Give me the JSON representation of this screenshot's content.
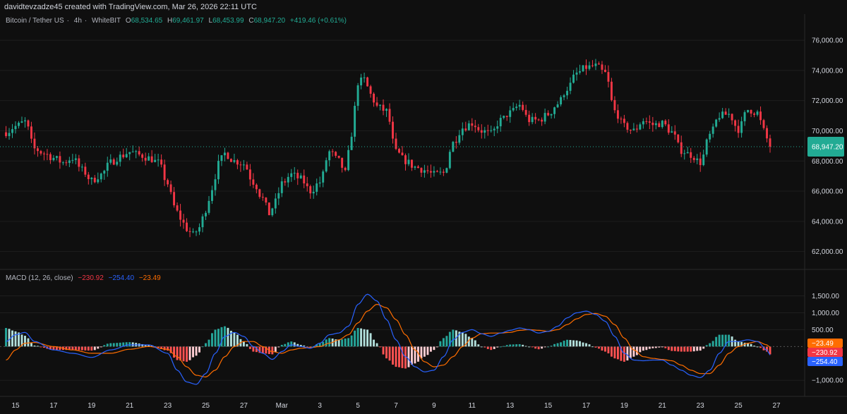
{
  "header": {
    "credit": "davidtevzadze45 created with TradingView.com, Mar 26, 2026 22:11 UTC"
  },
  "legend": {
    "symbol": "Bitcoin / Tether US",
    "interval": "4h",
    "exchange": "WhiteBIT",
    "open_label": "O",
    "open": "68,534.65",
    "high_label": "H",
    "high": "69,461.97",
    "low_label": "L",
    "low": "68,453.99",
    "close_label": "C",
    "close": "68,947.20",
    "change": "+419.46 (+0.61%)"
  },
  "macd_legend": {
    "name": "MACD (12, 26, close)",
    "hist": "−230.92",
    "macd": "−254.40",
    "signal": "−23.49"
  },
  "colors": {
    "background": "#0f0f0f",
    "up": "#22ab94",
    "down": "#f23645",
    "macd_line": "#2962ff",
    "signal_line": "#ff6d00",
    "hist_up_strong": "#26a69a",
    "hist_up_weak": "#b2dfdb",
    "hist_down_strong": "#ff5252",
    "hist_down_weak": "#ffcdd2",
    "grid": "#1e1e1e"
  },
  "chart_data": [
    {
      "type": "candlestick",
      "symbol": "Bitcoin / Tether US",
      "interval": "4h",
      "ylim": [
        61000,
        76800
      ],
      "yticks": [
        62000,
        64000,
        66000,
        68000,
        70000,
        72000,
        74000,
        76000
      ],
      "ytick_labels": [
        "62,000.00",
        "64,000.00",
        "66,000.00",
        "68,000.00",
        "70,000.00",
        "72,000.00",
        "74,000.00",
        "76,000.00"
      ],
      "xticks": [
        "15",
        "17",
        "19",
        "21",
        "23",
        "25",
        "27",
        "Mar",
        "3",
        "5",
        "7",
        "9",
        "11",
        "13",
        "15",
        "17",
        "19",
        "21",
        "23",
        "25",
        "27"
      ],
      "last_price": 68947.2,
      "last_price_label": "68,947.20",
      "close_path": [
        [
          "Feb 14 12:00",
          69900
        ],
        [
          "Feb 15 00:00",
          70300
        ],
        [
          "Feb 15 12:00",
          70600
        ],
        [
          "Feb 16 00:00",
          68800
        ],
        [
          "Feb 16 12:00",
          68500
        ],
        [
          "Feb 17 00:00",
          68200
        ],
        [
          "Feb 17 12:00",
          67900
        ],
        [
          "Feb 18 00:00",
          68200
        ],
        [
          "Feb 18 12:00",
          67400
        ],
        [
          "Feb 19 00:00",
          66700
        ],
        [
          "Feb 19 12:00",
          67100
        ],
        [
          "Feb 20 00:00",
          67900
        ],
        [
          "Feb 20 12:00",
          68300
        ],
        [
          "Feb 21 00:00",
          68600
        ],
        [
          "Feb 21 12:00",
          68400
        ],
        [
          "Feb 22 00:00",
          68200
        ],
        [
          "Feb 22 12:00",
          67900
        ],
        [
          "Feb 23 00:00",
          66500
        ],
        [
          "Feb 23 08:00",
          65000
        ],
        [
          "Feb 23 16:00",
          64200
        ],
        [
          "Feb 24 00:00",
          63500
        ],
        [
          "Feb 24 08:00",
          63100
        ],
        [
          "Feb 24 16:00",
          63600
        ],
        [
          "Feb 25 00:00",
          64800
        ],
        [
          "Feb 25 08:00",
          66200
        ],
        [
          "Feb 25 16:00",
          67800
        ],
        [
          "Feb 26 00:00",
          68500
        ],
        [
          "Feb 26 12:00",
          68000
        ],
        [
          "Feb 27 00:00",
          67800
        ],
        [
          "Feb 27 12:00",
          66600
        ],
        [
          "Feb 28 00:00",
          65500
        ],
        [
          "Feb 28 08:00",
          64500
        ],
        [
          "Feb 28 16:00",
          65300
        ],
        [
          "Mar 1 00:00",
          66500
        ],
        [
          "Mar 1 12:00",
          67100
        ],
        [
          "Mar 2 00:00",
          66800
        ],
        [
          "Mar 2 12:00",
          66000
        ],
        [
          "Mar 3 00:00",
          66600
        ],
        [
          "Mar 3 12:00",
          68600
        ],
        [
          "Mar 4 00:00",
          68000
        ],
        [
          "Mar 4 08:00",
          67200
        ],
        [
          "Mar 4 16:00",
          69800
        ],
        [
          "Mar 5 00:00",
          73200
        ],
        [
          "Mar 5 08:00",
          73400
        ],
        [
          "Mar 5 16:00",
          72400
        ],
        [
          "Mar 6 00:00",
          71600
        ],
        [
          "Mar 6 12:00",
          71300
        ],
        [
          "Mar 7 00:00",
          68600
        ],
        [
          "Mar 7 12:00",
          68000
        ],
        [
          "Mar 8 00:00",
          67600
        ],
        [
          "Mar 8 12:00",
          67400
        ],
        [
          "Mar 9 00:00",
          67100
        ],
        [
          "Mar 9 12:00",
          67200
        ],
        [
          "Mar 10 00:00",
          69200
        ],
        [
          "Mar 10 12:00",
          70200
        ],
        [
          "Mar 11 00:00",
          70500
        ],
        [
          "Mar 11 12:00",
          70000
        ],
        [
          "Mar 12 00:00",
          69800
        ],
        [
          "Mar 12 12:00",
          70700
        ],
        [
          "Mar 13 00:00",
          71200
        ],
        [
          "Mar 13 12:00",
          71700
        ],
        [
          "Mar 14 00:00",
          70700
        ],
        [
          "Mar 14 12:00",
          70700
        ],
        [
          "Mar 15 00:00",
          71100
        ],
        [
          "Mar 15 12:00",
          71800
        ],
        [
          "Mar 16 00:00",
          72800
        ],
        [
          "Mar 16 12:00",
          73800
        ],
        [
          "Mar 17 00:00",
          74200
        ],
        [
          "Mar 17 12:00",
          74300
        ],
        [
          "Mar 18 00:00",
          73800
        ],
        [
          "Mar 18 12:00",
          71300
        ],
        [
          "Mar 19 00:00",
          70300
        ],
        [
          "Mar 19 12:00",
          70000
        ],
        [
          "Mar 20 00:00",
          70700
        ],
        [
          "Mar 20 12:00",
          70400
        ],
        [
          "Mar 21 00:00",
          70500
        ],
        [
          "Mar 21 12:00",
          69900
        ],
        [
          "Mar 22 00:00",
          68700
        ],
        [
          "Mar 22 12:00",
          68400
        ],
        [
          "Mar 23 00:00",
          67900
        ],
        [
          "Mar 23 12:00",
          69700
        ],
        [
          "Mar 24 00:00",
          71000
        ],
        [
          "Mar 24 12:00",
          71100
        ],
        [
          "Mar 25 00:00",
          70100
        ],
        [
          "Mar 25 12:00",
          71400
        ],
        [
          "Mar 26 00:00",
          71200
        ],
        [
          "Mar 26 08:00",
          70000
        ],
        [
          "Mar 26 16:00",
          68947
        ]
      ]
    },
    {
      "type": "line",
      "name": "MACD (12, 26, close)",
      "ylim": [
        -1350,
        1950
      ],
      "yticks": [
        -1000,
        500,
        1000,
        1500
      ],
      "ytick_labels": [
        "−1,000.00",
        "500.00",
        "1,000.00",
        "1,500.00"
      ],
      "value_tags": [
        {
          "label": "−23.49",
          "value": -23.49,
          "color": "#ff6d00"
        },
        {
          "label": "−230.92",
          "value": -230.92,
          "color": "#f23645"
        },
        {
          "label": "−254.40",
          "value": -254.4,
          "color": "#2962ff"
        }
      ],
      "series_path": [
        {
          "name": "MACD",
          "points": [
            [
              "Feb 14 12:00",
              150
            ],
            [
              "Feb 15 00:00",
              350
            ],
            [
              "Feb 15 12:00",
              420
            ],
            [
              "Feb 16 00:00",
              150
            ],
            [
              "Feb 17 00:00",
              -100
            ],
            [
              "Feb 18 00:00",
              -200
            ],
            [
              "Feb 19 00:00",
              -320
            ],
            [
              "Feb 20 00:00",
              -100
            ],
            [
              "Feb 21 00:00",
              50
            ],
            [
              "Feb 22 00:00",
              50
            ],
            [
              "Feb 23 00:00",
              -200
            ],
            [
              "Feb 23 12:00",
              -700
            ],
            [
              "Feb 24 00:00",
              -1050
            ],
            [
              "Feb 24 12:00",
              -1120
            ],
            [
              "Feb 25 00:00",
              -800
            ],
            [
              "Feb 25 12:00",
              -200
            ],
            [
              "Feb 26 00:00",
              300
            ],
            [
              "Feb 26 12:00",
              420
            ],
            [
              "Feb 27 00:00",
              300
            ],
            [
              "Feb 27 12:00",
              0
            ],
            [
              "Feb 28 00:00",
              -200
            ],
            [
              "Feb 28 12:00",
              -380
            ],
            [
              "Mar 1 00:00",
              -150
            ],
            [
              "Mar 1 12:00",
              50
            ],
            [
              "Mar 2 00:00",
              0
            ],
            [
              "Mar 2 12:00",
              -50
            ],
            [
              "Mar 3 00:00",
              100
            ],
            [
              "Mar 3 12:00",
              350
            ],
            [
              "Mar 4 00:00",
              400
            ],
            [
              "Mar 4 12:00",
              600
            ],
            [
              "Mar 5 00:00",
              1250
            ],
            [
              "Mar 5 12:00",
              1550
            ],
            [
              "Mar 6 00:00",
              1350
            ],
            [
              "Mar 6 12:00",
              800
            ],
            [
              "Mar 7 00:00",
              200
            ],
            [
              "Mar 7 12:00",
              -300
            ],
            [
              "Mar 8 00:00",
              -600
            ],
            [
              "Mar 8 12:00",
              -750
            ],
            [
              "Mar 9 00:00",
              -700
            ],
            [
              "Mar 9 12:00",
              -300
            ],
            [
              "Mar 10 00:00",
              200
            ],
            [
              "Mar 10 12:00",
              420
            ],
            [
              "Mar 11 00:00",
              500
            ],
            [
              "Mar 11 12:00",
              380
            ],
            [
              "Mar 12 00:00",
              300
            ],
            [
              "Mar 12 12:00",
              400
            ],
            [
              "Mar 13 00:00",
              480
            ],
            [
              "Mar 13 12:00",
              550
            ],
            [
              "Mar 14 00:00",
              500
            ],
            [
              "Mar 14 12:00",
              400
            ],
            [
              "Mar 15 00:00",
              450
            ],
            [
              "Mar 15 12:00",
              600
            ],
            [
              "Mar 16 00:00",
              850
            ],
            [
              "Mar 16 12:00",
              1000
            ],
            [
              "Mar 17 00:00",
              1050
            ],
            [
              "Mar 17 12:00",
              950
            ],
            [
              "Mar 18 00:00",
              750
            ],
            [
              "Mar 18 12:00",
              300
            ],
            [
              "Mar 19 00:00",
              -200
            ],
            [
              "Mar 19 12:00",
              -400
            ],
            [
              "Mar 20 00:00",
              -420
            ],
            [
              "Mar 20 12:00",
              -400
            ],
            [
              "Mar 21 00:00",
              -400
            ],
            [
              "Mar 21 12:00",
              -550
            ],
            [
              "Mar 22 00:00",
              -700
            ],
            [
              "Mar 22 12:00",
              -850
            ],
            [
              "Mar 23 00:00",
              -920
            ],
            [
              "Mar 23 12:00",
              -700
            ],
            [
              "Mar 24 00:00",
              -200
            ],
            [
              "Mar 24 12:00",
              150
            ],
            [
              "Mar 25 00:00",
              150
            ],
            [
              "Mar 25 12:00",
              200
            ],
            [
              "Mar 26 00:00",
              150
            ],
            [
              "Mar 26 12:00",
              -100
            ],
            [
              "Mar 26 16:00",
              -254
            ]
          ]
        },
        {
          "name": "Signal",
          "points": [
            [
              "Feb 14 12:00",
              -400
            ],
            [
              "Feb 15 00:00",
              -100
            ],
            [
              "Feb 15 12:00",
              100
            ],
            [
              "Feb 16 00:00",
              120
            ],
            [
              "Feb 17 00:00",
              0
            ],
            [
              "Feb 18 00:00",
              -100
            ],
            [
              "Feb 19 00:00",
              -200
            ],
            [
              "Feb 20 00:00",
              -200
            ],
            [
              "Feb 21 00:00",
              -80
            ],
            [
              "Feb 22 00:00",
              0
            ],
            [
              "Feb 23 00:00",
              -80
            ],
            [
              "Feb 23 12:00",
              -300
            ],
            [
              "Feb 24 00:00",
              -600
            ],
            [
              "Feb 24 12:00",
              -850
            ],
            [
              "Feb 25 00:00",
              -900
            ],
            [
              "Feb 25 12:00",
              -700
            ],
            [
              "Feb 26 00:00",
              -300
            ],
            [
              "Feb 26 12:00",
              0
            ],
            [
              "Feb 27 00:00",
              150
            ],
            [
              "Feb 27 12:00",
              150
            ],
            [
              "Feb 28 00:00",
              0
            ],
            [
              "Feb 28 12:00",
              -150
            ],
            [
              "Mar 1 00:00",
              -200
            ],
            [
              "Mar 1 12:00",
              -100
            ],
            [
              "Mar 2 00:00",
              -50
            ],
            [
              "Mar 2 12:00",
              -30
            ],
            [
              "Mar 3 00:00",
              0
            ],
            [
              "Mar 3 12:00",
              100
            ],
            [
              "Mar 4 00:00",
              200
            ],
            [
              "Mar 4 12:00",
              350
            ],
            [
              "Mar 5 00:00",
              700
            ],
            [
              "Mar 5 12:00",
              1050
            ],
            [
              "Mar 6 00:00",
              1250
            ],
            [
              "Mar 6 12:00",
              1150
            ],
            [
              "Mar 7 00:00",
              800
            ],
            [
              "Mar 7 12:00",
              350
            ],
            [
              "Mar 8 00:00",
              -100
            ],
            [
              "Mar 8 12:00",
              -450
            ],
            [
              "Mar 9 00:00",
              -600
            ],
            [
              "Mar 9 12:00",
              -550
            ],
            [
              "Mar 10 00:00",
              -300
            ],
            [
              "Mar 10 12:00",
              0
            ],
            [
              "Mar 11 00:00",
              250
            ],
            [
              "Mar 11 12:00",
              380
            ],
            [
              "Mar 12 00:00",
              400
            ],
            [
              "Mar 12 12:00",
              400
            ],
            [
              "Mar 13 00:00",
              420
            ],
            [
              "Mar 13 12:00",
              480
            ],
            [
              "Mar 14 00:00",
              500
            ],
            [
              "Mar 14 12:00",
              480
            ],
            [
              "Mar 15 00:00",
              450
            ],
            [
              "Mar 15 12:00",
              500
            ],
            [
              "Mar 16 00:00",
              650
            ],
            [
              "Mar 16 12:00",
              820
            ],
            [
              "Mar 17 00:00",
              950
            ],
            [
              "Mar 17 12:00",
              980
            ],
            [
              "Mar 18 00:00",
              900
            ],
            [
              "Mar 18 12:00",
              650
            ],
            [
              "Mar 19 00:00",
              250
            ],
            [
              "Mar 19 12:00",
              -100
            ],
            [
              "Mar 20 00:00",
              -300
            ],
            [
              "Mar 20 12:00",
              -350
            ],
            [
              "Mar 21 00:00",
              -380
            ],
            [
              "Mar 21 12:00",
              -420
            ],
            [
              "Mar 22 00:00",
              -550
            ],
            [
              "Mar 22 12:00",
              -700
            ],
            [
              "Mar 23 00:00",
              -800
            ],
            [
              "Mar 23 12:00",
              -800
            ],
            [
              "Mar 24 00:00",
              -550
            ],
            [
              "Mar 24 12:00",
              -200
            ],
            [
              "Mar 25 00:00",
              0
            ],
            [
              "Mar 25 12:00",
              100
            ],
            [
              "Mar 26 00:00",
              150
            ],
            [
              "Mar 26 12:00",
              50
            ],
            [
              "Mar 26 16:00",
              -23
            ]
          ]
        }
      ]
    }
  ]
}
